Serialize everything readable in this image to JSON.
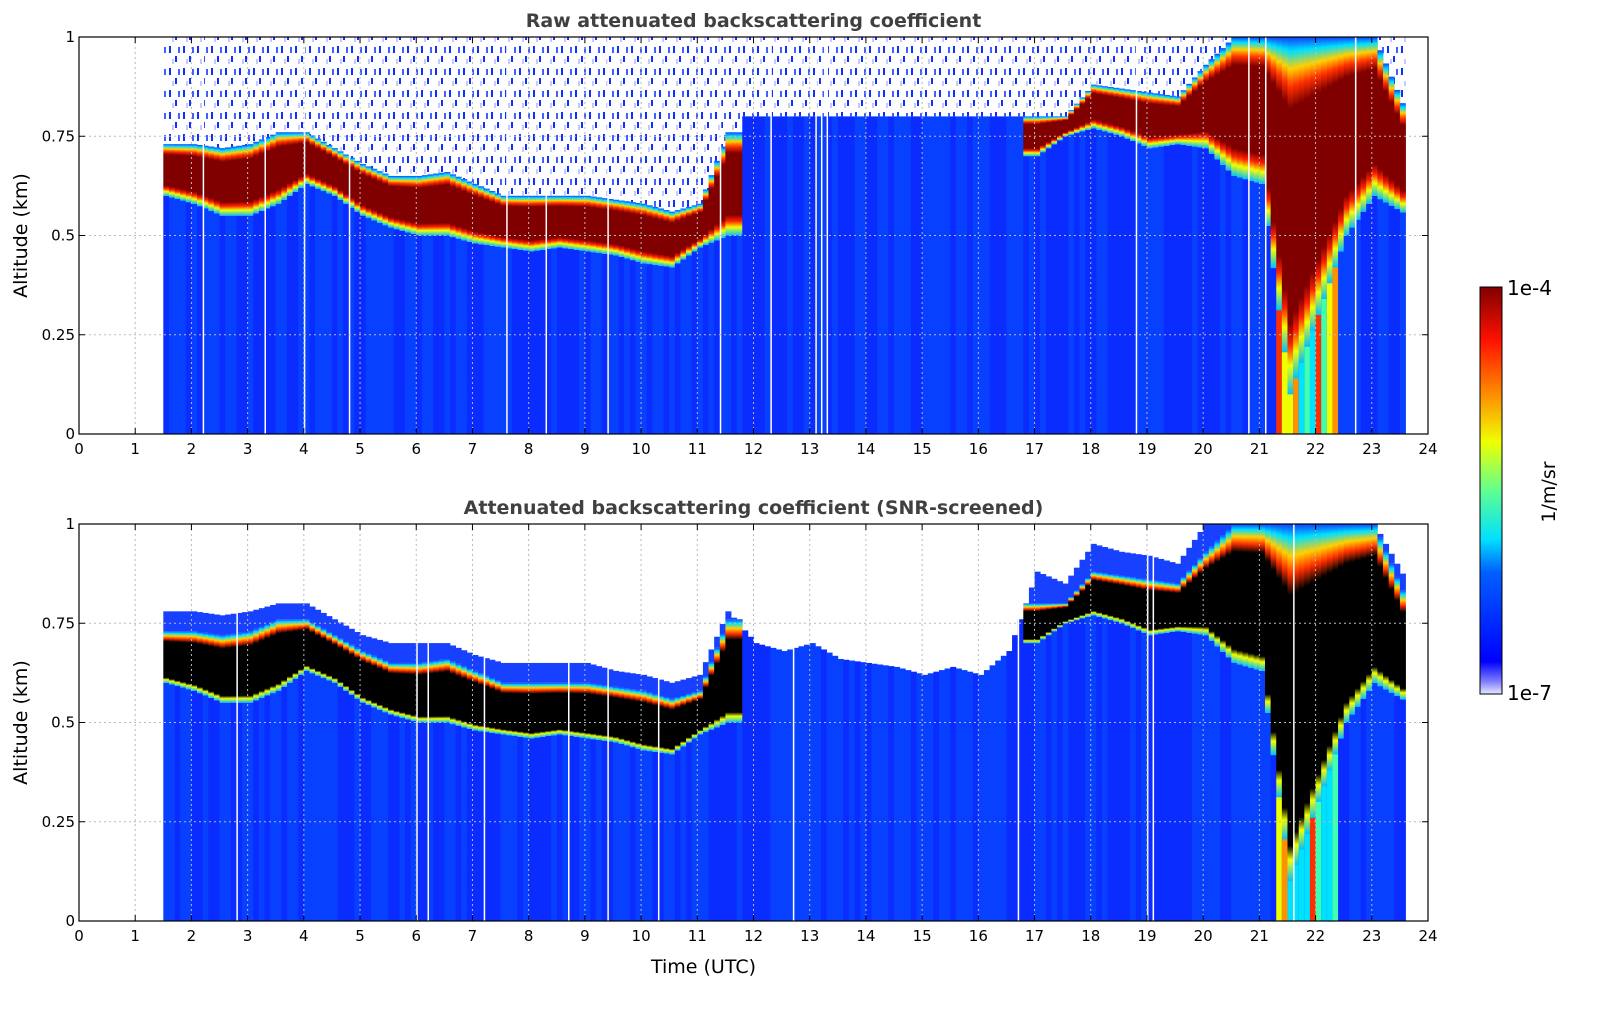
{
  "chart_data": [
    {
      "type": "heatmap",
      "title": "Raw attenuated backscattering coefficient",
      "xlabel": "",
      "ylabel": "Altitude (km)",
      "xlim": [
        0,
        24
      ],
      "ylim": [
        0,
        1
      ],
      "xticks": [
        "0",
        "1",
        "2",
        "3",
        "4",
        "5",
        "6",
        "7",
        "8",
        "9",
        "10",
        "11",
        "12",
        "13",
        "14",
        "15",
        "16",
        "17",
        "18",
        "19",
        "20",
        "21",
        "22",
        "23",
        "24"
      ],
      "yticks": [
        "0",
        "0.25",
        "0.5",
        "0.75",
        "1"
      ],
      "grid": true,
      "core_color": "#800000"
    },
    {
      "type": "heatmap",
      "title": "Attenuated backscattering coefficient (SNR-screened)",
      "xlabel": "Time (UTC)",
      "ylabel": "Altitude (km)",
      "xlim": [
        0,
        24
      ],
      "ylim": [
        0,
        1
      ],
      "xticks": [
        "0",
        "1",
        "2",
        "3",
        "4",
        "5",
        "6",
        "7",
        "8",
        "9",
        "10",
        "11",
        "12",
        "13",
        "14",
        "15",
        "16",
        "17",
        "18",
        "19",
        "20",
        "21",
        "22",
        "23",
        "24"
      ],
      "yticks": [
        "0",
        "0.25",
        "0.5",
        "0.75",
        "1"
      ],
      "grid": true,
      "core_color": "#000000"
    }
  ],
  "layers": {
    "time_utc": [
      1.5,
      2,
      2.5,
      3,
      3.5,
      4,
      4.5,
      5,
      5.5,
      6,
      6.5,
      7,
      7.5,
      8,
      8.5,
      9,
      9.5,
      10,
      10.5,
      11,
      11.5,
      12,
      12.5,
      13,
      13.5,
      14,
      14.5,
      15,
      15.5,
      16,
      16.5,
      17,
      17.5,
      18,
      18.5,
      19,
      19.5,
      20,
      20.5,
      21,
      21.5,
      22,
      22.5,
      23,
      23.6
    ],
    "cloud_base_km": [
      0.6,
      0.58,
      0.55,
      0.55,
      0.58,
      0.63,
      0.6,
      0.55,
      0.52,
      0.5,
      0.5,
      0.48,
      0.47,
      0.46,
      0.47,
      0.46,
      0.45,
      0.43,
      0.42,
      0.47,
      0.5,
      null,
      null,
      null,
      null,
      null,
      null,
      null,
      null,
      null,
      null,
      0.7,
      0.75,
      0.77,
      0.75,
      0.72,
      0.73,
      0.72,
      0.65,
      0.63,
      0.1,
      0.3,
      0.5,
      0.6,
      0.55
    ],
    "cloud_top_km": [
      0.73,
      0.73,
      0.72,
      0.73,
      0.76,
      0.76,
      0.72,
      0.68,
      0.65,
      0.65,
      0.66,
      0.63,
      0.6,
      0.6,
      0.6,
      0.6,
      0.59,
      0.58,
      0.56,
      0.58,
      0.76,
      null,
      null,
      null,
      null,
      null,
      null,
      null,
      null,
      null,
      null,
      0.8,
      0.8,
      0.88,
      0.87,
      0.86,
      0.85,
      0.93,
      1,
      1,
      1,
      1,
      1,
      1,
      0.8
    ],
    "screened_signal_top_km": [
      0.78,
      0.78,
      0.77,
      0.78,
      0.8,
      0.8,
      0.76,
      0.72,
      0.7,
      0.7,
      0.7,
      0.67,
      0.65,
      0.65,
      0.65,
      0.65,
      0.63,
      0.62,
      0.6,
      0.62,
      0.78,
      0.7,
      0.68,
      0.7,
      0.66,
      0.65,
      0.64,
      0.62,
      0.64,
      0.62,
      0.68,
      0.88,
      0.85,
      0.95,
      0.93,
      0.92,
      0.9,
      1,
      1,
      1,
      1,
      1,
      1,
      1,
      0.85
    ]
  },
  "colorbar": {
    "label": "1/m/sr",
    "max_label": "1e-4",
    "min_label": "1e-7"
  }
}
